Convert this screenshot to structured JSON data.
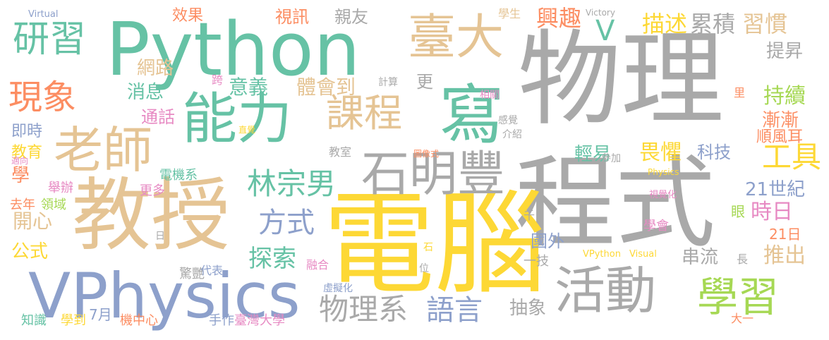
{
  "colors": {
    "grey": "#a9a9a9",
    "yellow": "#fdd835",
    "green": "#66c2a5",
    "tan": "#e5c494",
    "blue": "#8da0cb",
    "lime": "#a6d854",
    "orange": "#fc8d62",
    "pink": "#e78ac3"
  },
  "words": [
    {
      "text": "物理",
      "color": "grey"
    },
    {
      "text": "程式",
      "color": "grey"
    },
    {
      "text": "電腦",
      "color": "yellow"
    },
    {
      "text": "Python",
      "color": "green"
    },
    {
      "text": "教授",
      "color": "tan"
    },
    {
      "text": "VPhysics",
      "color": "blue"
    },
    {
      "text": "能力",
      "color": "green"
    },
    {
      "text": "寫",
      "color": "green"
    },
    {
      "text": "石明豐",
      "color": "grey"
    },
    {
      "text": "老師",
      "color": "tan"
    },
    {
      "text": "活動",
      "color": "grey"
    },
    {
      "text": "臺大",
      "color": "tan"
    },
    {
      "text": "學習",
      "color": "lime"
    },
    {
      "text": "課程",
      "color": "tan"
    },
    {
      "text": "研習",
      "color": "green"
    },
    {
      "text": "現象",
      "color": "orange"
    },
    {
      "text": "林宗男",
      "color": "green"
    },
    {
      "text": "物理系",
      "color": "grey"
    },
    {
      "text": "方式",
      "color": "blue"
    },
    {
      "text": "語言",
      "color": "blue"
    },
    {
      "text": "工具",
      "color": "yellow"
    },
    {
      "text": "探索",
      "color": "green"
    },
    {
      "text": "意義",
      "color": "green"
    },
    {
      "text": "體會到",
      "color": "tan"
    },
    {
      "text": "累積",
      "color": "grey"
    },
    {
      "text": "習慣",
      "color": "tan"
    },
    {
      "text": "描述",
      "color": "yellow"
    },
    {
      "text": "興趣",
      "color": "orange"
    },
    {
      "text": "畏懼",
      "color": "yellow"
    },
    {
      "text": "時日",
      "color": "pink"
    },
    {
      "text": "持續",
      "color": "lime"
    },
    {
      "text": "漸漸",
      "color": "orange"
    },
    {
      "text": "提昇",
      "color": "grey"
    },
    {
      "text": "抽象",
      "color": "grey"
    },
    {
      "text": "消息",
      "color": "green"
    },
    {
      "text": "網路",
      "color": "tan"
    },
    {
      "text": "視訊",
      "color": "orange"
    },
    {
      "text": "親友",
      "color": "grey"
    },
    {
      "text": "效果",
      "color": "orange"
    },
    {
      "text": "推出",
      "color": "tan"
    },
    {
      "text": "21世紀",
      "color": "blue"
    },
    {
      "text": "科技",
      "color": "blue"
    },
    {
      "text": "輕易",
      "color": "green"
    },
    {
      "text": "串流",
      "color": "grey"
    },
    {
      "text": "開心",
      "color": "tan"
    },
    {
      "text": "公式",
      "color": "yellow"
    },
    {
      "text": "學",
      "color": "orange"
    },
    {
      "text": "順風耳",
      "color": "orange"
    },
    {
      "text": "國外",
      "color": "blue"
    },
    {
      "text": "更",
      "color": "grey"
    },
    {
      "text": "V",
      "color": "green"
    },
    {
      "text": "通話",
      "color": "pink"
    },
    {
      "text": "即時",
      "color": "blue"
    },
    {
      "text": "教育",
      "color": "yellow"
    },
    {
      "text": "去年",
      "color": "orange"
    },
    {
      "text": "領域",
      "color": "lime"
    },
    {
      "text": "舉辦",
      "color": "pink"
    },
    {
      "text": "更多",
      "color": "pink"
    },
    {
      "text": "電機系",
      "color": "green"
    },
    {
      "text": "學會",
      "color": "pink"
    },
    {
      "text": "21日",
      "color": "orange"
    },
    {
      "text": "眼",
      "color": "lime"
    },
    {
      "text": "知識",
      "color": "green"
    },
    {
      "text": "學到",
      "color": "yellow"
    },
    {
      "text": "7月",
      "color": "blue"
    },
    {
      "text": "機中心",
      "color": "orange"
    },
    {
      "text": "手作",
      "color": "blue"
    },
    {
      "text": "臺灣大學",
      "color": "pink"
    },
    {
      "text": "驚艷",
      "color": "grey"
    },
    {
      "text": "代表",
      "color": "blue"
    },
    {
      "text": "融合",
      "color": "pink"
    },
    {
      "text": "虛擬化",
      "color": "blue"
    },
    {
      "text": "一技",
      "color": "grey"
    },
    {
      "text": "長",
      "color": "grey"
    },
    {
      "text": "大一",
      "color": "orange"
    },
    {
      "text": "學生",
      "color": "tan"
    },
    {
      "text": "Victory",
      "color": "grey"
    },
    {
      "text": "Virtual",
      "color": "blue"
    },
    {
      "text": "計算",
      "color": "grey"
    },
    {
      "text": "跨",
      "color": "pink"
    },
    {
      "text": "相關",
      "color": "pink"
    },
    {
      "text": "里",
      "color": "orange"
    },
    {
      "text": "感覺",
      "color": "grey"
    },
    {
      "text": "介紹",
      "color": "grey"
    },
    {
      "text": "直覺",
      "color": "yellow"
    },
    {
      "text": "教室",
      "color": "grey"
    },
    {
      "text": "圖像式",
      "color": "orange"
    },
    {
      "text": "參加",
      "color": "grey"
    },
    {
      "text": "Physics",
      "color": "yellow"
    },
    {
      "text": "適向",
      "color": "pink"
    },
    {
      "text": "視覺化",
      "color": "pink"
    },
    {
      "text": "VPython",
      "color": "yellow"
    },
    {
      "text": "Visual",
      "color": "yellow"
    },
    {
      "text": "千",
      "color": "grey"
    },
    {
      "text": "日",
      "color": "grey"
    },
    {
      "text": "位",
      "color": "grey"
    },
    {
      "text": "石",
      "color": "yellow"
    }
  ]
}
